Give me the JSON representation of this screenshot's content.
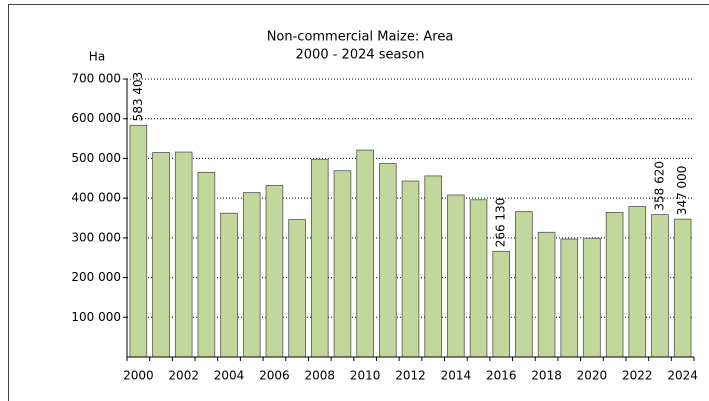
{
  "chart_data": {
    "type": "bar",
    "title": "Non-commercial Maize: Area",
    "subtitle": "2000 - 2024 season",
    "y_label": "Ha",
    "categories": [
      "2000",
      null,
      "2002",
      null,
      "2004",
      null,
      "2006",
      null,
      "2008",
      null,
      "2010",
      null,
      "2012",
      null,
      "2014",
      null,
      "2016",
      null,
      "2018",
      null,
      "2020",
      null,
      "2022",
      null,
      "2024"
    ],
    "values": [
      583403,
      515000,
      516000,
      465000,
      362000,
      414000,
      432000,
      346000,
      498000,
      469000,
      521000,
      487000,
      443000,
      456000,
      408000,
      396000,
      266130,
      366000,
      314000,
      297000,
      299000,
      364000,
      379000,
      358620,
      347000
    ],
    "value_labels": [
      "583 403",
      null,
      null,
      null,
      null,
      null,
      null,
      null,
      null,
      null,
      null,
      null,
      null,
      null,
      null,
      null,
      "266 130",
      null,
      null,
      null,
      null,
      null,
      null,
      "358 620",
      "347 000"
    ],
    "color": "#c3d69b",
    "ylim": [
      0,
      700000
    ],
    "yticks": [
      {
        "value": 100000,
        "label": "100 000"
      },
      {
        "value": 200000,
        "label": "200 000"
      },
      {
        "value": 300000,
        "label": "300 000"
      },
      {
        "value": 400000,
        "label": "400 000"
      },
      {
        "value": 500000,
        "label": "500 000"
      },
      {
        "value": 600000,
        "label": "600 000"
      },
      {
        "value": 700000,
        "label": "700 000"
      }
    ],
    "grid": true
  }
}
